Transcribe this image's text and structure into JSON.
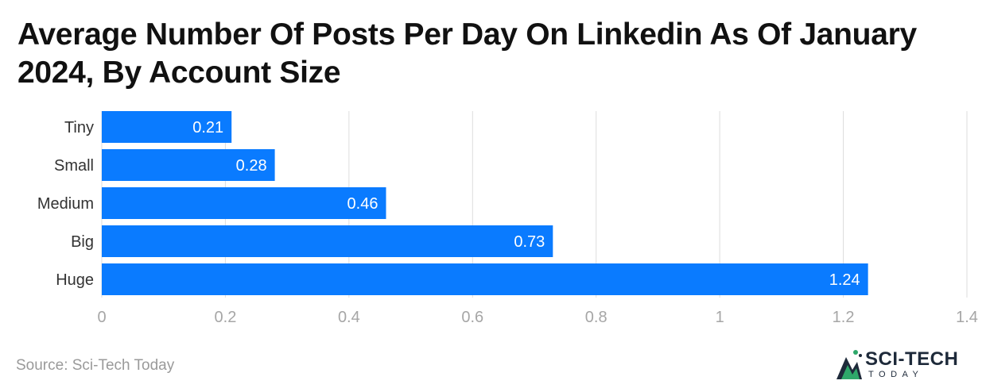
{
  "title": "Average Number Of Posts Per Day On Linkedin As Of January 2024, By Account Size",
  "source": "Source: Sci-Tech Today",
  "logo": {
    "name": "SCI-TECH",
    "sub": "TODAY"
  },
  "colors": {
    "bar": "#0a7bff",
    "grid": "#dddddd",
    "tick": "#a6a6a6",
    "label": "#333333"
  },
  "chart_data": {
    "type": "bar",
    "orientation": "horizontal",
    "categories": [
      "Tiny",
      "Small",
      "Medium",
      "Big",
      "Huge"
    ],
    "values": [
      0.21,
      0.28,
      0.46,
      0.73,
      1.24
    ],
    "data_labels": [
      "0.21",
      "0.28",
      "0.46",
      "0.73",
      "1.24"
    ],
    "xlim": [
      0,
      1.4
    ],
    "x_ticks": [
      0,
      0.2,
      0.4,
      0.6,
      0.8,
      1,
      1.2,
      1.4
    ],
    "x_tick_labels": [
      "0",
      "0.2",
      "0.4",
      "0.6",
      "0.8",
      "1",
      "1.2",
      "1.4"
    ],
    "xlabel": "",
    "ylabel": "",
    "grid": true,
    "legend": "none"
  }
}
